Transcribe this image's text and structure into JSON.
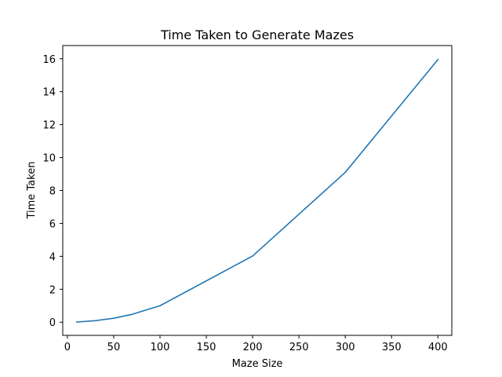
{
  "chart_data": {
    "type": "line",
    "title": "Time Taken to Generate Mazes",
    "xlabel": "Maze Size",
    "ylabel": "Time Taken",
    "xlim": [
      -5,
      415
    ],
    "ylim": [
      -0.8,
      16.8
    ],
    "xticks": [
      0,
      50,
      100,
      150,
      200,
      250,
      300,
      350,
      400
    ],
    "yticks": [
      0,
      2,
      4,
      6,
      8,
      10,
      12,
      14,
      16
    ],
    "grid": false,
    "series": [
      {
        "color": "#1f77b4",
        "x": [
          10,
          30,
          50,
          70,
          100,
          200,
          300,
          400
        ],
        "y": [
          0.01,
          0.09,
          0.24,
          0.48,
          1.0,
          4.02,
          9.1,
          15.95
        ]
      }
    ]
  }
}
